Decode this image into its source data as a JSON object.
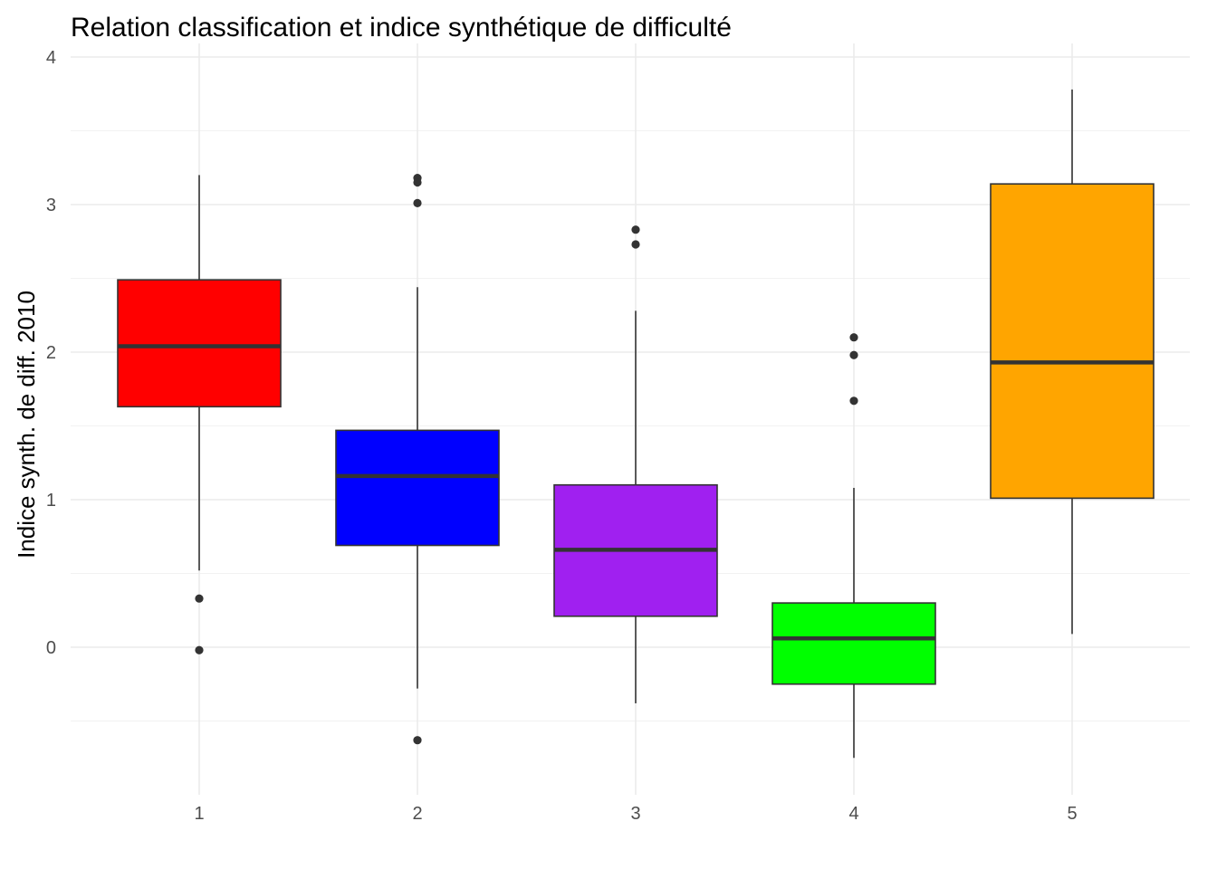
{
  "chart_data": {
    "type": "boxplot",
    "title": "Relation classification et indice synthétique de difficulté",
    "xlabel": "",
    "ylabel": "Indice synth. de diff. 2010",
    "categories": [
      "1",
      "2",
      "3",
      "4",
      "5"
    ],
    "ylim": [
      -0.95,
      4.0
    ],
    "yticks": [
      0,
      1,
      2,
      3,
      4
    ],
    "grid": true,
    "theme": "minimal",
    "boxes": [
      {
        "category": "1",
        "color": "#FF0000",
        "whisker_low": 0.52,
        "q1": 1.63,
        "median": 2.04,
        "q3": 2.49,
        "whisker_high": 3.2,
        "outliers": [
          0.33,
          -0.02
        ]
      },
      {
        "category": "2",
        "color": "#0000FF",
        "whisker_low": -0.28,
        "q1": 0.69,
        "median": 1.16,
        "q3": 1.47,
        "whisker_high": 2.44,
        "outliers": [
          3.18,
          3.15,
          3.01,
          -0.63
        ]
      },
      {
        "category": "3",
        "color": "#A020F0",
        "whisker_low": -0.38,
        "q1": 0.21,
        "median": 0.66,
        "q3": 1.1,
        "whisker_high": 2.28,
        "outliers": [
          2.83,
          2.73
        ]
      },
      {
        "category": "4",
        "color": "#00FF00",
        "whisker_low": -0.75,
        "q1": -0.25,
        "median": 0.06,
        "q3": 0.3,
        "whisker_high": 1.08,
        "outliers": [
          2.1,
          1.98,
          1.67
        ]
      },
      {
        "category": "5",
        "color": "#FFA500",
        "whisker_low": 0.09,
        "q1": 1.01,
        "median": 1.93,
        "q3": 3.14,
        "whisker_high": 3.78,
        "outliers": []
      }
    ]
  }
}
